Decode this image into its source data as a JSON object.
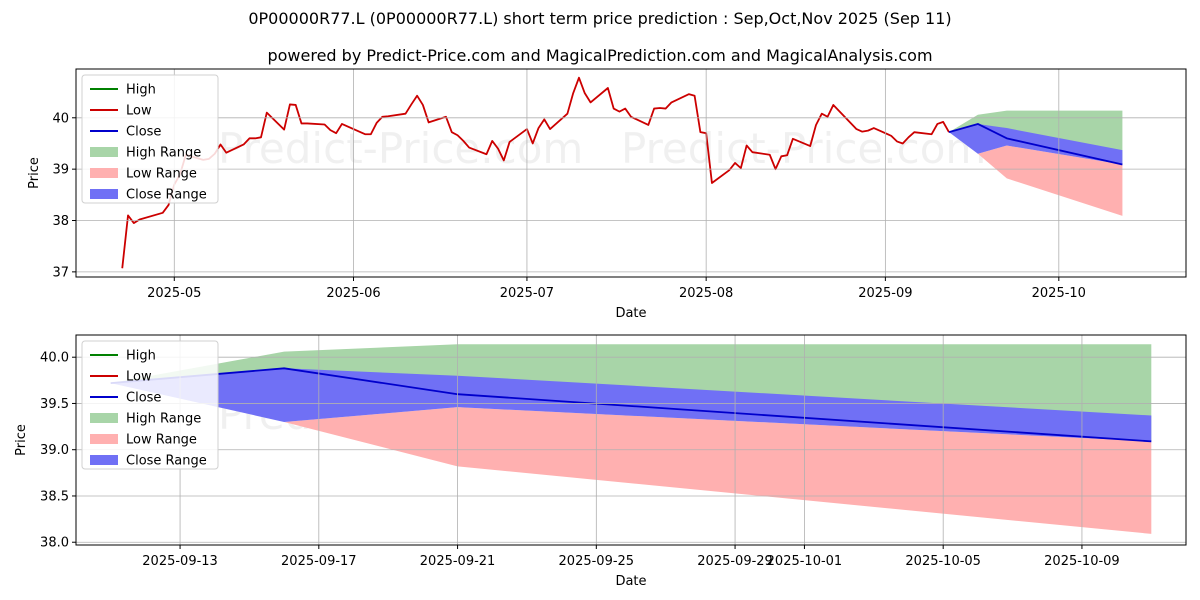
{
  "header": {
    "title": "0P00000R77.L (0P00000R77.L) short term price prediction : Sep,Oct,Nov 2025 (Sep 11)",
    "subtitle": "powered by Predict-Price.com and MagicalPrediction.com and MagicalAnalysis.com"
  },
  "watermark": "Predict-Price.com",
  "colors": {
    "high": "#008000",
    "low": "#cc0000",
    "close": "#0000cc",
    "high_range": "#a8d5a8",
    "low_range": "#ffb0b0",
    "close_range": "#7070f5"
  },
  "chart_data": [
    {
      "type": "line",
      "xlabel": "Date",
      "ylabel": "Price",
      "x_tick_labels": [
        "2025-05",
        "2025-06",
        "2025-07",
        "2025-08",
        "2025-09",
        "2025-10"
      ],
      "y_tick_labels": [
        "37",
        "38",
        "39",
        "40"
      ],
      "xlim": [
        "2025-04-13",
        "2025-10-22"
      ],
      "ylim": [
        36.9,
        40.95
      ],
      "grid": true,
      "legend_position": "top-left",
      "legend": [
        "High",
        "Low",
        "Close",
        "High Range",
        "Low Range",
        "Close Range"
      ],
      "series": [
        {
          "name": "Low",
          "x": [
            "2025-04-21",
            "2025-04-22",
            "2025-04-23",
            "2025-04-24",
            "2025-04-28",
            "2025-04-29",
            "2025-04-30",
            "2025-05-01",
            "2025-05-02",
            "2025-05-05",
            "2025-05-06",
            "2025-05-07",
            "2025-05-08",
            "2025-05-09",
            "2025-05-12",
            "2025-05-13",
            "2025-05-14",
            "2025-05-15",
            "2025-05-16",
            "2025-05-19",
            "2025-05-20",
            "2025-05-21",
            "2025-05-22",
            "2025-05-23",
            "2025-05-26",
            "2025-05-27",
            "2025-05-28",
            "2025-05-29",
            "2025-06-02",
            "2025-06-03",
            "2025-06-04",
            "2025-06-05",
            "2025-06-06",
            "2025-06-09",
            "2025-06-10",
            "2025-06-11",
            "2025-06-12",
            "2025-06-13",
            "2025-06-16",
            "2025-06-17",
            "2025-06-18",
            "2025-06-19",
            "2025-06-20",
            "2025-06-23",
            "2025-06-24",
            "2025-06-25",
            "2025-06-26",
            "2025-06-27",
            "2025-06-30",
            "2025-07-01",
            "2025-07-02",
            "2025-07-03",
            "2025-07-04",
            "2025-07-07",
            "2025-07-08",
            "2025-07-09",
            "2025-07-10",
            "2025-07-11",
            "2025-07-14",
            "2025-07-15",
            "2025-07-16",
            "2025-07-17",
            "2025-07-18",
            "2025-07-21",
            "2025-07-22",
            "2025-07-23",
            "2025-07-24",
            "2025-07-25",
            "2025-07-28",
            "2025-07-29",
            "2025-07-30",
            "2025-07-31",
            "2025-08-01",
            "2025-08-04",
            "2025-08-05",
            "2025-08-06",
            "2025-08-07",
            "2025-08-08",
            "2025-08-11",
            "2025-08-12",
            "2025-08-13",
            "2025-08-14",
            "2025-08-15",
            "2025-08-18",
            "2025-08-19",
            "2025-08-20",
            "2025-08-21",
            "2025-08-22",
            "2025-08-26",
            "2025-08-27",
            "2025-08-28",
            "2025-08-29",
            "2025-09-01",
            "2025-09-02",
            "2025-09-03",
            "2025-09-04",
            "2025-09-05",
            "2025-09-08",
            "2025-09-09",
            "2025-09-10",
            "2025-09-11"
          ],
          "values": [
            37.07,
            38.1,
            37.95,
            38.02,
            38.15,
            38.3,
            38.7,
            38.9,
            39.28,
            39.18,
            39.2,
            39.3,
            39.48,
            39.32,
            39.48,
            39.6,
            39.6,
            39.62,
            40.1,
            39.77,
            40.26,
            40.25,
            39.89,
            39.89,
            39.87,
            39.76,
            39.7,
            39.88,
            39.68,
            39.68,
            39.9,
            40.02,
            40.03,
            40.08,
            40.26,
            40.43,
            40.25,
            39.91,
            40.02,
            39.72,
            39.66,
            39.55,
            39.42,
            39.29,
            39.55,
            39.4,
            39.17,
            39.53,
            39.78,
            39.5,
            39.8,
            39.97,
            39.78,
            40.08,
            40.48,
            40.78,
            40.48,
            40.3,
            40.58,
            40.18,
            40.12,
            40.18,
            40.02,
            39.86,
            40.18,
            40.19,
            40.18,
            40.3,
            40.46,
            40.43,
            39.72,
            39.7,
            38.73,
            38.98,
            39.12,
            39.02,
            39.46,
            39.33,
            39.28,
            39.0,
            39.25,
            39.27,
            39.59,
            39.45,
            39.86,
            40.08,
            40.02,
            40.25,
            39.78,
            39.73,
            39.75,
            39.8,
            39.65,
            39.54,
            39.5,
            39.62,
            39.72,
            39.68,
            39.88,
            39.92,
            39.72
          ]
        },
        {
          "name": "Close",
          "x": [
            "2025-09-11",
            "2025-09-16",
            "2025-09-21",
            "2025-10-11"
          ],
          "values": [
            39.72,
            39.88,
            39.6,
            39.09
          ]
        }
      ],
      "ranges": [
        {
          "name": "High Range",
          "x": [
            "2025-09-11",
            "2025-09-16",
            "2025-09-21",
            "2025-10-11"
          ],
          "lower": [
            39.72,
            39.88,
            39.6,
            39.09
          ],
          "upper": [
            39.72,
            40.06,
            40.14,
            40.14
          ]
        },
        {
          "name": "Low Range",
          "x": [
            "2025-09-11",
            "2025-09-16",
            "2025-09-21",
            "2025-10-11"
          ],
          "lower": [
            39.72,
            39.3,
            38.82,
            38.09
          ],
          "upper": [
            39.72,
            39.3,
            39.46,
            39.09
          ]
        },
        {
          "name": "Close Range",
          "x": [
            "2025-09-11",
            "2025-09-16",
            "2025-09-21",
            "2025-10-11"
          ],
          "lower": [
            39.72,
            39.3,
            39.46,
            39.09
          ],
          "upper": [
            39.72,
            39.88,
            39.8,
            39.37
          ]
        }
      ]
    },
    {
      "type": "line",
      "xlabel": "Date",
      "ylabel": "Price",
      "x_tick_labels": [
        "2025-09-13",
        "2025-09-17",
        "2025-09-21",
        "2025-09-25",
        "2025-09-29",
        "2025-10-01",
        "2025-10-05",
        "2025-10-09"
      ],
      "y_tick_labels": [
        "38.0",
        "38.5",
        "39.0",
        "39.5",
        "40.0"
      ],
      "xlim": [
        "2025-09-10",
        "2025-10-12"
      ],
      "ylim": [
        37.97,
        40.24
      ],
      "grid": true,
      "legend_position": "top-left",
      "legend": [
        "High",
        "Low",
        "Close",
        "High Range",
        "Low Range",
        "Close Range"
      ],
      "series": [
        {
          "name": "Close",
          "x": [
            "2025-09-11",
            "2025-09-16",
            "2025-09-21",
            "2025-10-11"
          ],
          "values": [
            39.72,
            39.88,
            39.6,
            39.09
          ]
        }
      ],
      "ranges": [
        {
          "name": "High Range",
          "x": [
            "2025-09-11",
            "2025-09-16",
            "2025-09-21",
            "2025-10-11"
          ],
          "lower": [
            39.72,
            39.88,
            39.6,
            39.09
          ],
          "upper": [
            39.72,
            40.06,
            40.14,
            40.14
          ]
        },
        {
          "name": "Low Range",
          "x": [
            "2025-09-11",
            "2025-09-16",
            "2025-09-21",
            "2025-10-11"
          ],
          "lower": [
            39.72,
            39.3,
            38.82,
            38.09
          ],
          "upper": [
            39.72,
            39.3,
            39.46,
            39.09
          ]
        },
        {
          "name": "Close Range",
          "x": [
            "2025-09-11",
            "2025-09-16",
            "2025-09-21",
            "2025-10-11"
          ],
          "lower": [
            39.72,
            39.3,
            39.46,
            39.09
          ],
          "upper": [
            39.72,
            39.88,
            39.8,
            39.37
          ]
        }
      ]
    }
  ]
}
